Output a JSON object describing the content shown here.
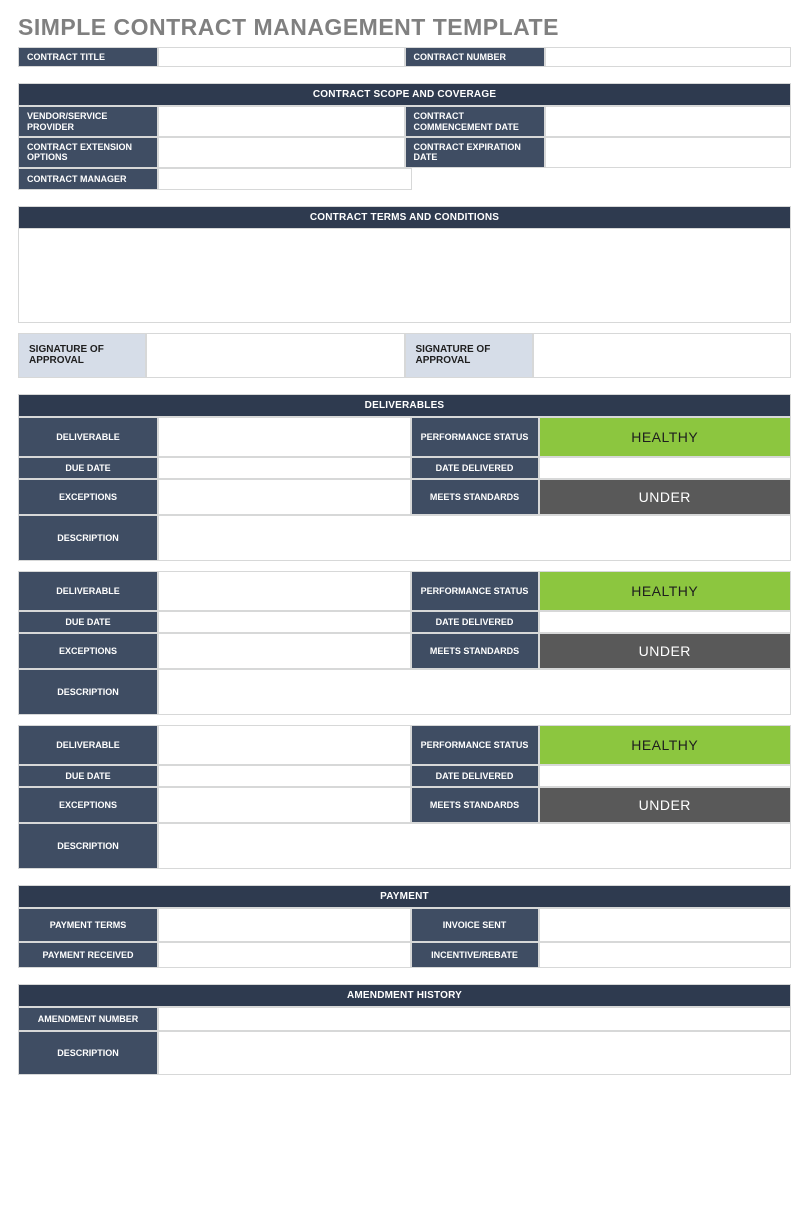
{
  "page": {
    "title": "SIMPLE CONTRACT MANAGEMENT TEMPLATE"
  },
  "colors": {
    "band_bg": "#2e3a4f",
    "label_bg": "#3f4d63",
    "signature_bg": "#d6dde8",
    "status_healthy_bg": "#8cc63f",
    "status_under_bg": "#595959",
    "border": "#d7d8d8",
    "title_text": "#808080"
  },
  "header": {
    "contract_title_label": "CONTRACT TITLE",
    "contract_title_value": "",
    "contract_number_label": "CONTRACT NUMBER",
    "contract_number_value": ""
  },
  "scope": {
    "band": "CONTRACT SCOPE AND COVERAGE",
    "vendor_label": "VENDOR/SERVICE PROVIDER",
    "vendor_value": "",
    "commencement_label": "CONTRACT COMMENCEMENT DATE",
    "commencement_value": "",
    "extension_label": "CONTRACT EXTENSION OPTIONS",
    "extension_value": "",
    "expiration_label": "CONTRACT EXPIRATION DATE",
    "expiration_value": "",
    "manager_label": "CONTRACT MANAGER",
    "manager_value": ""
  },
  "terms": {
    "band": "CONTRACT TERMS AND CONDITIONS",
    "body": "",
    "sig1_label": "SIGNATURE OF APPROVAL",
    "sig1_value": "",
    "sig2_label": "SIGNATURE OF APPROVAL",
    "sig2_value": ""
  },
  "deliverables": {
    "band": "DELIVERABLES",
    "labels": {
      "deliverable": "DELIVERABLE",
      "performance_status": "PERFORMANCE STATUS",
      "due_date": "DUE DATE",
      "date_delivered": "DATE DELIVERED",
      "exceptions": "EXCEPTIONS",
      "meets_standards": "MEETS STANDARDS",
      "description": "DESCRIPTION"
    },
    "items": [
      {
        "deliverable": "",
        "performance_status": "HEALTHY",
        "performance_status_class": "healthy",
        "due_date": "",
        "date_delivered": "",
        "exceptions": "",
        "meets_standards": "UNDER",
        "meets_standards_class": "under",
        "description": ""
      },
      {
        "deliverable": "",
        "performance_status": "HEALTHY",
        "performance_status_class": "healthy",
        "due_date": "",
        "date_delivered": "",
        "exceptions": "",
        "meets_standards": "UNDER",
        "meets_standards_class": "under",
        "description": ""
      },
      {
        "deliverable": "",
        "performance_status": "HEALTHY",
        "performance_status_class": "healthy",
        "due_date": "",
        "date_delivered": "",
        "exceptions": "",
        "meets_standards": "UNDER",
        "meets_standards_class": "under",
        "description": ""
      }
    ]
  },
  "payment": {
    "band": "PAYMENT",
    "terms_label": "PAYMENT TERMS",
    "terms_value": "",
    "invoice_label": "INVOICE SENT",
    "invoice_value": "",
    "received_label": "PAYMENT RECEIVED",
    "received_value": "",
    "incentive_label": "INCENTIVE/REBATE",
    "incentive_value": ""
  },
  "amendment": {
    "band": "AMENDMENT HISTORY",
    "number_label": "AMENDMENT NUMBER",
    "number_value": "",
    "description_label": "DESCRIPTION",
    "description_value": ""
  }
}
